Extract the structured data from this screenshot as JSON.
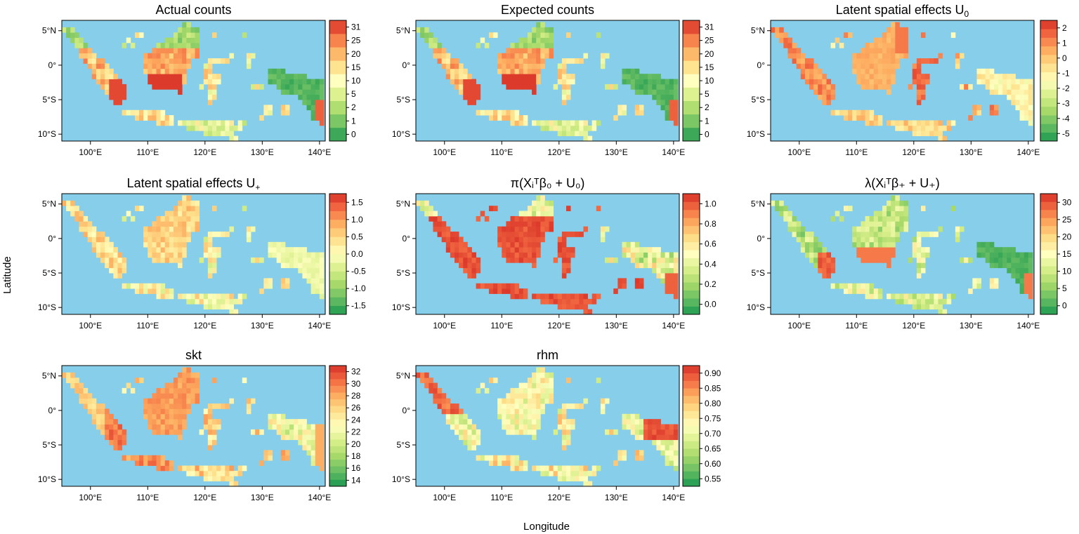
{
  "figure": {
    "ylabel": "Latitude",
    "xlabel": "Longitude",
    "lon_ticks": [
      "100°E",
      "110°E",
      "120°E",
      "130°E",
      "140°E"
    ],
    "lat_ticks": [
      "5°N",
      "0°",
      "5°S",
      "10°S"
    ]
  },
  "colors": {
    "ocean": "#87CEEB",
    "ramp": [
      "#1a9850",
      "#66bd63",
      "#a6d96a",
      "#d9ef8b",
      "#ffffbf",
      "#fee08b",
      "#fdae61",
      "#f46d43",
      "#d73027"
    ]
  },
  "panels": [
    {
      "key": "actual",
      "title": "Actual counts",
      "legend": [
        "0",
        "1",
        "2",
        "5",
        "10",
        "15",
        "20",
        "25",
        "31"
      ],
      "legend_steps": 9,
      "pattern": "counts"
    },
    {
      "key": "expected",
      "title": "Expected counts",
      "legend": [
        "0",
        "1",
        "2",
        "5",
        "10",
        "15",
        "20",
        "25",
        "31"
      ],
      "legend_steps": 9,
      "pattern": "counts"
    },
    {
      "key": "u0",
      "title": "Latent spatial effects U",
      "title_sub": "0",
      "legend": [
        "-5",
        "-4",
        "-3",
        "-2",
        "-1",
        "0",
        "1",
        "2"
      ],
      "legend_steps": 14,
      "pattern": "u0"
    },
    {
      "key": "uplus",
      "title": "Latent spatial effects U",
      "title_sub": "+",
      "legend": [
        "-1.5",
        "-1.0",
        "-0.5",
        "0.0",
        "0.5",
        "1.0",
        "1.5"
      ],
      "legend_steps": 14,
      "pattern": "uplus"
    },
    {
      "key": "pi",
      "title": "π(X",
      "title_math": "π(Xᵢᵀβ₀ + U₀)",
      "legend": [
        "0.0",
        "0.2",
        "0.4",
        "0.6",
        "0.8",
        "1.0"
      ],
      "legend_steps": 15,
      "pattern": "pi"
    },
    {
      "key": "lambda",
      "title": "λ(X",
      "title_math": "λ(Xᵢᵀβ₊ + U₊)",
      "legend": [
        "0",
        "5",
        "10",
        "15",
        "20",
        "25",
        "30"
      ],
      "legend_steps": 15,
      "pattern": "lambda"
    },
    {
      "key": "skt",
      "title": "skt",
      "legend": [
        "14",
        "16",
        "18",
        "20",
        "22",
        "24",
        "26",
        "28",
        "30",
        "32"
      ],
      "legend_steps": 18,
      "pattern": "skt"
    },
    {
      "key": "rhm",
      "title": "rhm",
      "legend": [
        "0.55",
        "0.60",
        "0.65",
        "0.70",
        "0.75",
        "0.80",
        "0.85",
        "0.90"
      ],
      "legend_steps": 16,
      "pattern": "rhm"
    }
  ]
}
